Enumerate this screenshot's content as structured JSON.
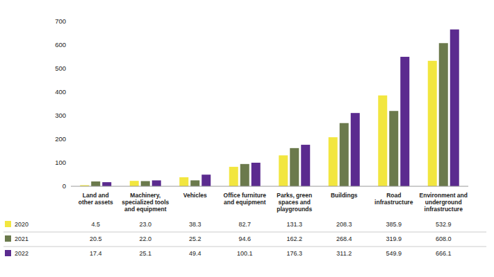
{
  "chart_data": {
    "type": "bar",
    "categories": [
      "Land and\nother assets",
      "Machinery,\nspecialized tools\nand equipment",
      "Vehicles",
      "Office furniture\nand equipment",
      "Parks, green\nspaces and\nplaygrounds",
      "Buildings",
      "Road\ninfrastructure",
      "Environment and\nunderground\ninfrastructure"
    ],
    "series": [
      {
        "name": "2020",
        "color": "#f2e63f",
        "values": [
          4.5,
          23.0,
          38.3,
          82.7,
          131.3,
          208.3,
          385.9,
          532.9
        ],
        "value_labels": [
          "4.5",
          "23.0",
          "38.3",
          "82.7",
          "131.3",
          "208.3",
          "385.9",
          "532.9"
        ]
      },
      {
        "name": "2021",
        "color": "#6b7a4c",
        "values": [
          20.5,
          22.0,
          25.2,
          94.6,
          162.2,
          268.4,
          319.9,
          608.0
        ],
        "value_labels": [
          "20.5",
          "22.0",
          "25.2",
          "94.6",
          "162.2",
          "268.4",
          "319.9",
          "608.0"
        ]
      },
      {
        "name": "2022",
        "color": "#5b2b8f",
        "values": [
          17.4,
          25.1,
          49.4,
          100.1,
          176.3,
          311.2,
          549.9,
          666.1
        ],
        "value_labels": [
          "17.4",
          "25.1",
          "49.4",
          "100.1",
          "176.3",
          "311.2",
          "549.9",
          "666.1"
        ]
      }
    ],
    "ylim": [
      0,
      700
    ],
    "yticks": [
      0,
      100,
      200,
      300,
      400,
      500,
      600,
      700
    ],
    "grid": false
  }
}
